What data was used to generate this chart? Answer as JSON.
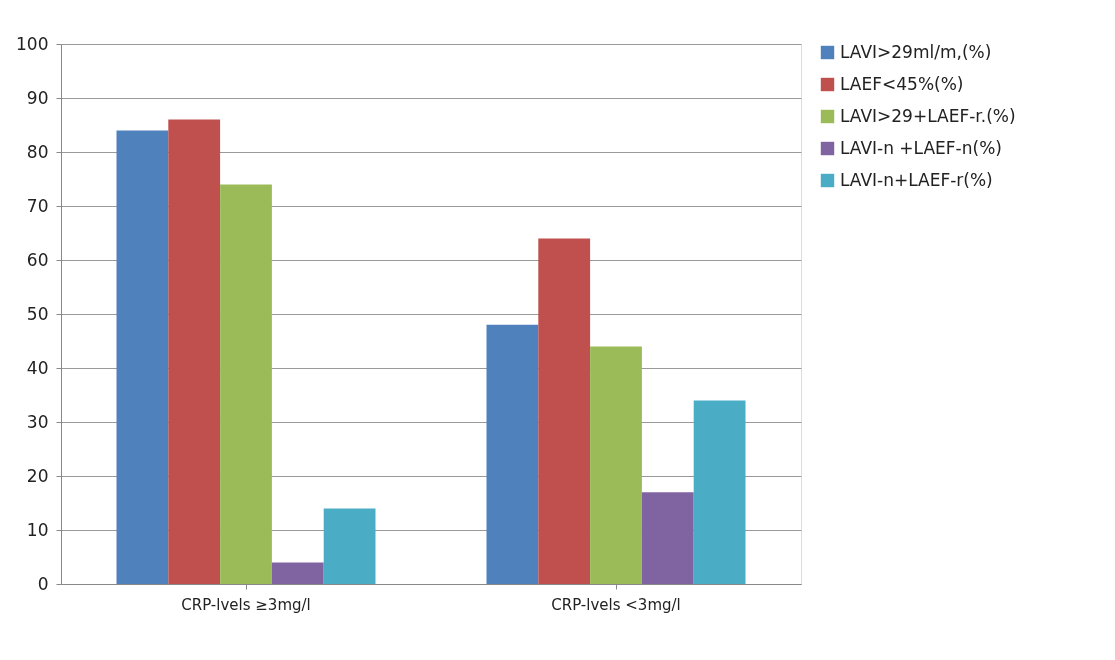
{
  "chart_data": {
    "type": "bar",
    "categories": [
      "CRP-lvels ≥3mg/l",
      "CRP-lvels <3mg/l"
    ],
    "series": [
      {
        "name": "LAVI>29ml/m,(%)",
        "color": "#4f81bd",
        "values": [
          84,
          48
        ]
      },
      {
        "name": "LAEF<45%(%)",
        "color": "#c0504d",
        "values": [
          86,
          64
        ]
      },
      {
        "name": "LAVI>29+LAEF-r.(%)",
        "color": "#9bbb59",
        "values": [
          74,
          44
        ]
      },
      {
        "name": "LAVI-n +LAEF-n(%)",
        "color": "#8064a2",
        "values": [
          4,
          17
        ]
      },
      {
        "name": "LAVI-n+LAEF-r(%)",
        "color": "#4bacc6",
        "values": [
          14,
          34
        ]
      }
    ],
    "ylim": [
      0,
      100
    ],
    "yticks": [
      0,
      10,
      20,
      30,
      40,
      50,
      60,
      70,
      80,
      90,
      100
    ],
    "grid": "y",
    "legend": "right"
  }
}
